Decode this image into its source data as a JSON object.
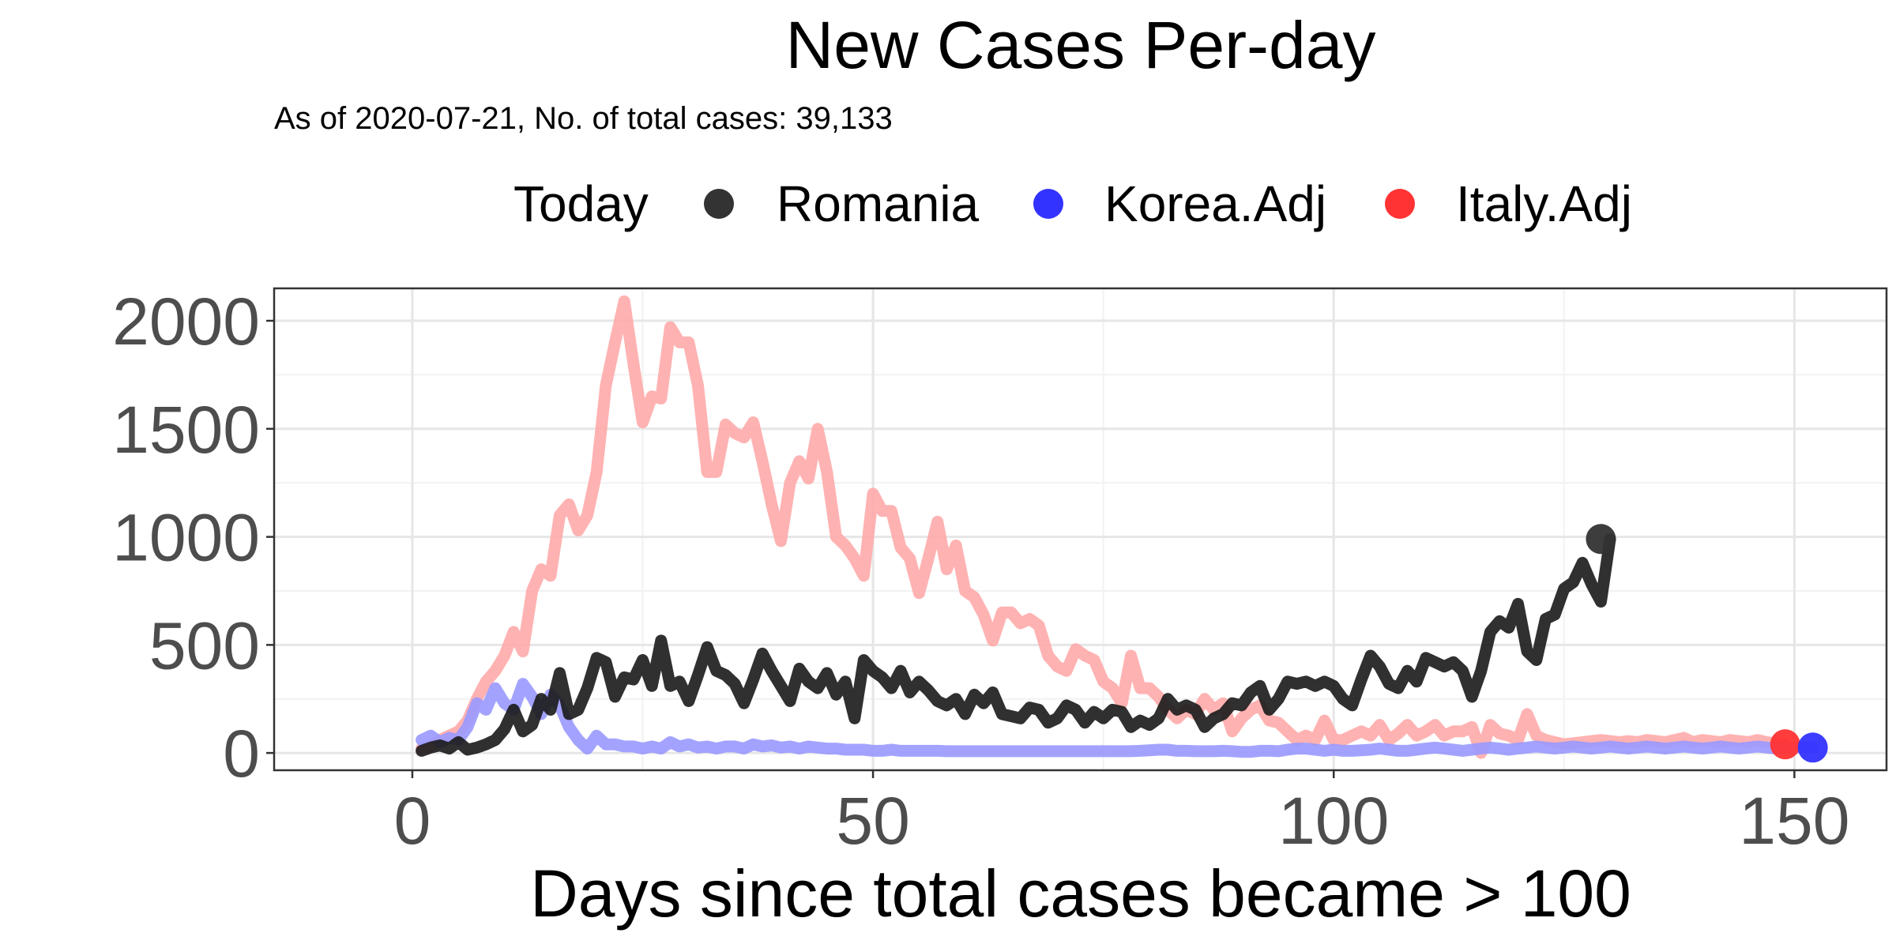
{
  "chart_data": {
    "type": "line",
    "title": "New Cases Per-day",
    "subtitle": "As of 2020-07-21, No. of total cases: 39,133",
    "xlabel": "Days since total cases became > 100",
    "ylabel": "",
    "xlim": [
      -15,
      160
    ],
    "ylim": [
      -80,
      2150
    ],
    "x_ticks": [
      0,
      50,
      100,
      150
    ],
    "y_ticks": [
      0,
      500,
      1000,
      1500,
      2000
    ],
    "grid": true,
    "legend": {
      "title": "Today",
      "placement": "top",
      "entries": [
        {
          "label": "Romania",
          "color": "#333333"
        },
        {
          "label": "Korea.Adj",
          "color": "#3333ff"
        },
        {
          "label": "Italy.Adj",
          "color": "#ff3333"
        }
      ]
    },
    "series": [
      {
        "name": "Romania",
        "color": "#333333",
        "line_color": "#1a1a1a",
        "end_marker": {
          "x": 129,
          "y": 990
        },
        "x_start": 1,
        "values": [
          10,
          25,
          35,
          20,
          50,
          15,
          25,
          40,
          60,
          110,
          200,
          100,
          130,
          250,
          200,
          370,
          180,
          200,
          300,
          440,
          420,
          260,
          350,
          340,
          430,
          310,
          520,
          310,
          330,
          240,
          360,
          490,
          380,
          360,
          320,
          230,
          340,
          460,
          380,
          310,
          240,
          390,
          330,
          300,
          370,
          270,
          330,
          160,
          430,
          380,
          350,
          300,
          380,
          280,
          330,
          290,
          240,
          220,
          250,
          180,
          270,
          230,
          280,
          180,
          170,
          160,
          210,
          200,
          140,
          160,
          220,
          200,
          140,
          190,
          160,
          200,
          190,
          120,
          150,
          130,
          160,
          250,
          200,
          220,
          200,
          120,
          160,
          180,
          230,
          220,
          280,
          310,
          200,
          250,
          330,
          320,
          330,
          310,
          330,
          310,
          250,
          220,
          340,
          450,
          400,
          320,
          300,
          380,
          330,
          440,
          420,
          400,
          420,
          380,
          260,
          380,
          560,
          610,
          580,
          690,
          470,
          430,
          620,
          640,
          760,
          790,
          880,
          780,
          700,
          990
        ]
      },
      {
        "name": "Korea.Adj",
        "color": "#3333ff",
        "line_color": "#9999ff",
        "end_marker": {
          "x": 152,
          "y": 25
        },
        "x_start": 1,
        "values": [
          60,
          80,
          50,
          70,
          60,
          120,
          230,
          200,
          300,
          230,
          200,
          320,
          260,
          180,
          270,
          220,
          120,
          60,
          20,
          80,
          40,
          40,
          30,
          30,
          20,
          30,
          20,
          50,
          30,
          40,
          25,
          30,
          20,
          30,
          30,
          20,
          40,
          30,
          35,
          25,
          30,
          20,
          30,
          25,
          20,
          20,
          15,
          15,
          15,
          10,
          10,
          15,
          10,
          10,
          10,
          10,
          10,
          8,
          8,
          8,
          8,
          8,
          8,
          8,
          8,
          8,
          8,
          8,
          8,
          8,
          8,
          8,
          8,
          8,
          8,
          8,
          8,
          8,
          10,
          12,
          15,
          15,
          10,
          10,
          8,
          8,
          8,
          10,
          8,
          5,
          5,
          10,
          10,
          8,
          15,
          20,
          20,
          15,
          10,
          15,
          10,
          10,
          12,
          15,
          20,
          15,
          10,
          10,
          15,
          20,
          25,
          20,
          15,
          10,
          15,
          20,
          25,
          20,
          15,
          20,
          25,
          30,
          25,
          20,
          25,
          30,
          25,
          20,
          25,
          30,
          25,
          20,
          25,
          30,
          25,
          20,
          25,
          30,
          25,
          20,
          25,
          30,
          25,
          20,
          25,
          30,
          25,
          20,
          25,
          25,
          25,
          25
        ]
      },
      {
        "name": "Italy.Adj",
        "color": "#ff3333",
        "line_color": "#ffaaaa",
        "end_marker": {
          "x": 149,
          "y": 40
        },
        "x_start": 1,
        "values": [
          20,
          30,
          60,
          80,
          100,
          150,
          250,
          330,
          380,
          450,
          560,
          470,
          750,
          850,
          820,
          1100,
          1150,
          1030,
          1100,
          1300,
          1700,
          1900,
          2090,
          1800,
          1530,
          1650,
          1640,
          1970,
          1900,
          1900,
          1700,
          1300,
          1300,
          1520,
          1480,
          1460,
          1530,
          1350,
          1150,
          980,
          1250,
          1350,
          1270,
          1500,
          1300,
          1000,
          960,
          900,
          820,
          1200,
          1120,
          1120,
          950,
          900,
          740,
          900,
          1070,
          850,
          960,
          750,
          720,
          640,
          520,
          650,
          650,
          600,
          620,
          590,
          450,
          400,
          380,
          480,
          450,
          430,
          330,
          300,
          230,
          450,
          300,
          300,
          260,
          200,
          160,
          200,
          180,
          250,
          200,
          230,
          100,
          160,
          200,
          220,
          150,
          140,
          100,
          60,
          80,
          60,
          150,
          60,
          60,
          80,
          100,
          80,
          130,
          60,
          90,
          130,
          80,
          100,
          130,
          80,
          100,
          100,
          120,
          0,
          130,
          90,
          80,
          60,
          180,
          80,
          60,
          50,
          40,
          45,
          50,
          55,
          60,
          55,
          50,
          55,
          50,
          60,
          55,
          50,
          60,
          70,
          50,
          60,
          55,
          50,
          60,
          55,
          50,
          60,
          50,
          45,
          40
        ]
      }
    ]
  }
}
